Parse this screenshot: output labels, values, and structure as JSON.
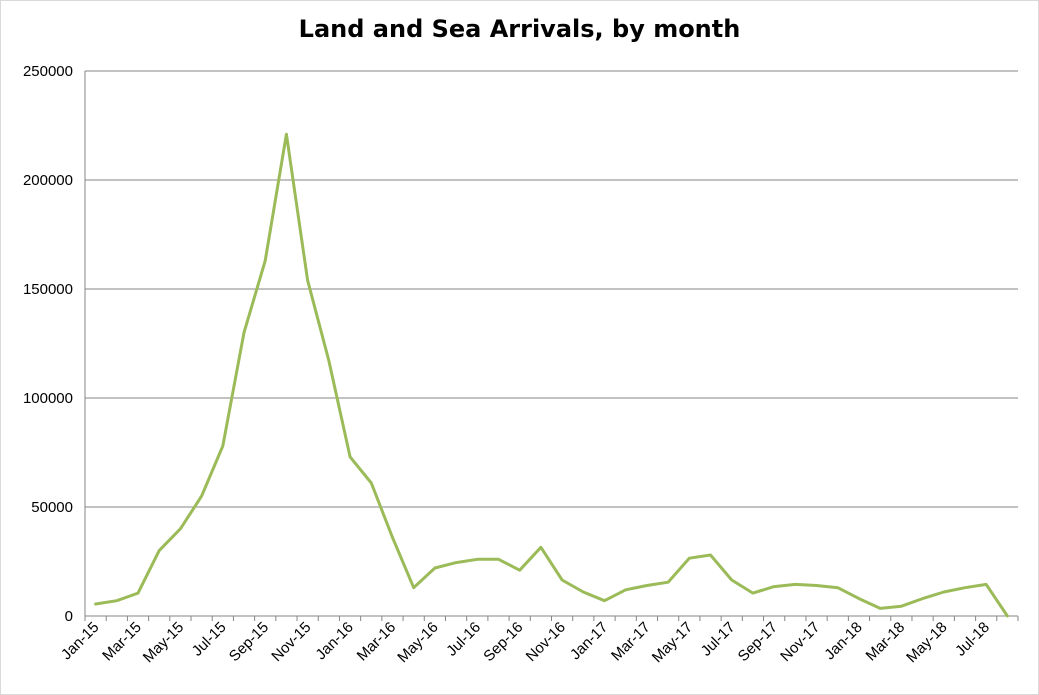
{
  "chart_data": {
    "type": "line",
    "title": "Land and Sea Arrivals, by month",
    "xlabel": "",
    "ylabel": "",
    "ylim": [
      0,
      250000
    ],
    "yticks": [
      "0",
      "50000",
      "100000",
      "150000",
      "200000",
      "250000"
    ],
    "grid": true,
    "legend": "none",
    "line_color": "#9BBB59",
    "x": [
      "Jan-15",
      "Feb-15",
      "Mar-15",
      "Apr-15",
      "May-15",
      "Jun-15",
      "Jul-15",
      "Aug-15",
      "Sep-15",
      "Oct-15",
      "Nov-15",
      "Dec-15",
      "Jan-16",
      "Feb-16",
      "Mar-16",
      "Apr-16",
      "May-16",
      "Jun-16",
      "Jul-16",
      "Aug-16",
      "Sep-16",
      "Oct-16",
      "Nov-16",
      "Dec-16",
      "Jan-17",
      "Feb-17",
      "Mar-17",
      "Apr-17",
      "May-17",
      "Jun-17",
      "Jul-17",
      "Aug-17",
      "Sep-17",
      "Oct-17",
      "Nov-17",
      "Dec-17",
      "Jan-18",
      "Feb-18",
      "Mar-18",
      "Apr-18",
      "May-18",
      "Jun-18",
      "Jul-18",
      "Aug-18"
    ],
    "x_tick_labels": [
      "Jan-15",
      "Mar-15",
      "May-15",
      "Jul-15",
      "Sep-15",
      "Nov-15",
      "Jan-16",
      "Mar-16",
      "May-16",
      "Jul-16",
      "Sep-16",
      "Nov-16",
      "Jan-17",
      "Mar-17",
      "May-17",
      "Jul-17",
      "Sep-17",
      "Nov-17",
      "Jan-18",
      "Mar-18",
      "May-18",
      "Jul-18"
    ],
    "values": [
      5500,
      7000,
      10500,
      30000,
      40000,
      55000,
      78000,
      130000,
      163000,
      221000,
      154000,
      117000,
      73000,
      61000,
      36000,
      13000,
      22000,
      24500,
      26000,
      26000,
      21000,
      31500,
      16500,
      11000,
      7000,
      12000,
      14000,
      15500,
      26500,
      28000,
      16500,
      10500,
      13500,
      14500,
      14000,
      13000,
      8000,
      3500,
      4500,
      8000,
      11000,
      13000,
      14500,
      0
    ]
  }
}
